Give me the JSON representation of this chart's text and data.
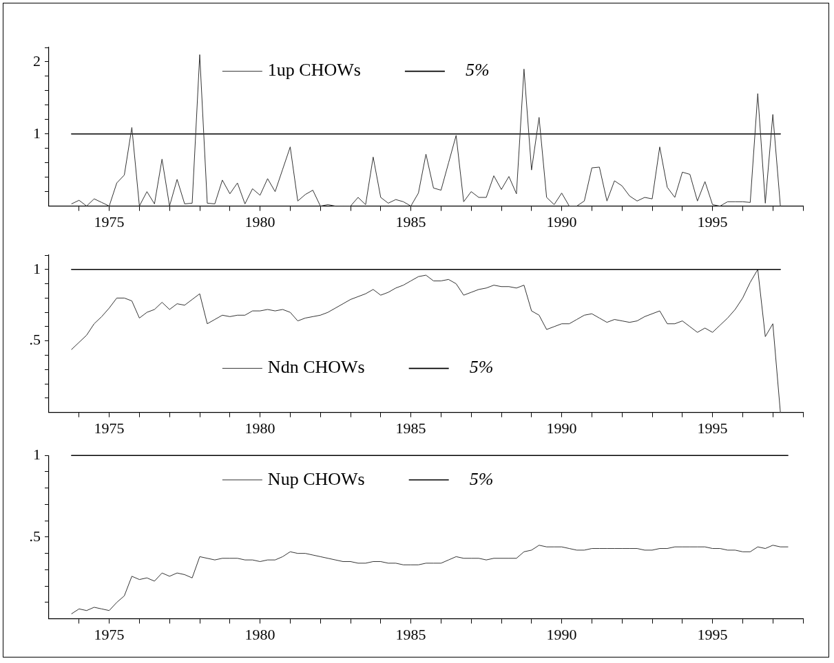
{
  "chart_data": [
    {
      "type": "line",
      "legend": "top",
      "x": [
        1973.75,
        1974,
        1974.25,
        1974.5,
        1974.75,
        1975,
        1975.25,
        1975.5,
        1975.75,
        1976,
        1976.25,
        1976.5,
        1976.75,
        1977,
        1977.25,
        1977.5,
        1977.75,
        1978,
        1978.25,
        1978.5,
        1978.75,
        1979,
        1979.25,
        1979.5,
        1979.75,
        1980,
        1980.25,
        1980.5,
        1980.75,
        1981,
        1981.25,
        1981.5,
        1981.75,
        1982,
        1982.25,
        1982.5,
        1982.75,
        1983,
        1983.25,
        1983.5,
        1983.75,
        1984,
        1984.25,
        1984.5,
        1984.75,
        1985,
        1985.25,
        1985.5,
        1985.75,
        1986,
        1986.25,
        1986.5,
        1986.75,
        1987,
        1987.25,
        1987.5,
        1987.75,
        1988,
        1988.25,
        1988.5,
        1988.75,
        1989,
        1989.25,
        1989.5,
        1989.75,
        1990,
        1990.25,
        1990.5,
        1990.75,
        1991,
        1991.25,
        1991.5,
        1991.75,
        1992,
        1992.25,
        1992.5,
        1992.75,
        1993,
        1993.25,
        1993.5,
        1993.75,
        1994,
        1994.25,
        1994.5,
        1994.75,
        1995,
        1995.25,
        1995.5,
        1995.75,
        1996,
        1996.25,
        1996.5,
        1996.75,
        1997,
        1997.25
      ],
      "series": [
        {
          "name": "1up CHOWs",
          "color": "#333333",
          "values": [
            0.03,
            0.08,
            0,
            0.1,
            0.05,
            0,
            0.32,
            0.43,
            1.09,
            0,
            0.2,
            0.03,
            0.65,
            0,
            0.37,
            0.03,
            0.04,
            2.1,
            0.04,
            0.03,
            0.36,
            0.17,
            0.32,
            0.03,
            0.24,
            0.15,
            0.38,
            0.2,
            0.51,
            0.82,
            0.07,
            0.16,
            0.22,
            0,
            0.02,
            0,
            0,
            0,
            0.12,
            0.02,
            0.68,
            0.12,
            0.04,
            0.09,
            0.06,
            0,
            0.18,
            0.72,
            0.25,
            0.22,
            0.6,
            0.98,
            0.06,
            0.2,
            0.12,
            0.12,
            0.42,
            0.23,
            0.41,
            0.17,
            1.9,
            0.5,
            1.23,
            0.12,
            0.02,
            0.18,
            0,
            0,
            0.07,
            0.53,
            0.54,
            0.07,
            0.35,
            0.28,
            0.14,
            0.07,
            0.12,
            0.1,
            0.82,
            0.26,
            0.12,
            0.47,
            0.44,
            0.07,
            0.34,
            0.02,
            0,
            0.06,
            0.06,
            0.06,
            0.05,
            1.56,
            0.04,
            1.27,
            0
          ]
        },
        {
          "name": "5%",
          "color": "#000000",
          "values": [
            1,
            1,
            1,
            1,
            1,
            1,
            1,
            1,
            1,
            1,
            1,
            1,
            1,
            1,
            1,
            1,
            1,
            1,
            1,
            1,
            1,
            1,
            1,
            1,
            1,
            1,
            1,
            1,
            1,
            1,
            1,
            1,
            1,
            1,
            1,
            1,
            1,
            1,
            1,
            1,
            1,
            1,
            1,
            1,
            1,
            1,
            1,
            1,
            1,
            1,
            1,
            1,
            1,
            1,
            1,
            1,
            1,
            1,
            1,
            1,
            1,
            1,
            1,
            1,
            1,
            1,
            1,
            1,
            1,
            1,
            1,
            1,
            1,
            1,
            1,
            1,
            1,
            1,
            1,
            1,
            1,
            1,
            1,
            1,
            1,
            1,
            1,
            1,
            1,
            1,
            1,
            1,
            1,
            1,
            1
          ]
        }
      ],
      "xlim": [
        1973,
        1998
      ],
      "xticks": [
        {
          "value": 1974,
          "label": null
        },
        1975,
        {
          "value": 1976,
          "label": null
        },
        {
          "value": 1977,
          "label": null
        },
        {
          "value": 1978,
          "label": null
        },
        {
          "value": 1979,
          "label": null
        },
        1980,
        {
          "value": 1981,
          "label": null
        },
        {
          "value": 1982,
          "label": null
        },
        {
          "value": 1983,
          "label": null
        },
        {
          "value": 1984,
          "label": null
        },
        1985,
        {
          "value": 1986,
          "label": null
        },
        {
          "value": 1987,
          "label": null
        },
        {
          "value": 1988,
          "label": null
        },
        {
          "value": 1989,
          "label": null
        },
        1990,
        {
          "value": 1991,
          "label": null
        },
        {
          "value": 1992,
          "label": null
        },
        {
          "value": 1993,
          "label": null
        },
        {
          "value": 1994,
          "label": null
        },
        1995,
        {
          "value": 1996,
          "label": null
        },
        {
          "value": 1997,
          "label": null
        },
        {
          "value": 1998,
          "label": null
        }
      ],
      "ylim": [
        0,
        2.2
      ],
      "yticks": [
        {
          "value": 0.2,
          "label": null
        },
        {
          "value": 0.4,
          "label": null
        },
        {
          "value": 0.6,
          "label": null
        },
        {
          "value": 0.8,
          "label": null
        },
        {
          "value": 1,
          "label": "1"
        },
        {
          "value": 1.2,
          "label": null
        },
        {
          "value": 1.4,
          "label": null
        },
        {
          "value": 1.6,
          "label": null
        },
        {
          "value": 1.8,
          "label": null
        },
        {
          "value": 2,
          "label": "2"
        },
        {
          "value": 2.2,
          "label": null
        }
      ]
    },
    {
      "type": "line",
      "legend": "bottom",
      "x": [
        1973.75,
        1974,
        1974.25,
        1974.5,
        1974.75,
        1975,
        1975.25,
        1975.5,
        1975.75,
        1976,
        1976.25,
        1976.5,
        1976.75,
        1977,
        1977.25,
        1977.5,
        1977.75,
        1978,
        1978.25,
        1978.5,
        1978.75,
        1979,
        1979.25,
        1979.5,
        1979.75,
        1980,
        1980.25,
        1980.5,
        1980.75,
        1981,
        1981.25,
        1981.5,
        1981.75,
        1982,
        1982.25,
        1982.5,
        1982.75,
        1983,
        1983.25,
        1983.5,
        1983.75,
        1984,
        1984.25,
        1984.5,
        1984.75,
        1985,
        1985.25,
        1985.5,
        1985.75,
        1986,
        1986.25,
        1986.5,
        1986.75,
        1987,
        1987.25,
        1987.5,
        1987.75,
        1988,
        1988.25,
        1988.5,
        1988.75,
        1989,
        1989.25,
        1989.5,
        1989.75,
        1990,
        1990.25,
        1990.5,
        1990.75,
        1991,
        1991.25,
        1991.5,
        1991.75,
        1992,
        1992.25,
        1992.5,
        1992.75,
        1993,
        1993.25,
        1993.5,
        1993.75,
        1994,
        1994.25,
        1994.5,
        1994.75,
        1995,
        1995.25,
        1995.5,
        1995.75,
        1996,
        1996.25,
        1996.5,
        1996.75,
        1997,
        1997.25
      ],
      "series": [
        {
          "name": "Ndn CHOWs",
          "color": "#333333",
          "values": [
            0.44,
            0.49,
            0.54,
            0.62,
            0.67,
            0.73,
            0.8,
            0.8,
            0.78,
            0.66,
            0.7,
            0.72,
            0.77,
            0.72,
            0.76,
            0.75,
            0.79,
            0.83,
            0.62,
            0.65,
            0.68,
            0.67,
            0.68,
            0.68,
            0.71,
            0.71,
            0.72,
            0.71,
            0.72,
            0.7,
            0.64,
            0.66,
            0.67,
            0.68,
            0.7,
            0.73,
            0.76,
            0.79,
            0.81,
            0.83,
            0.86,
            0.82,
            0.84,
            0.87,
            0.89,
            0.92,
            0.95,
            0.96,
            0.92,
            0.92,
            0.93,
            0.9,
            0.82,
            0.84,
            0.86,
            0.87,
            0.89,
            0.88,
            0.88,
            0.87,
            0.89,
            0.71,
            0.68,
            0.58,
            0.6,
            0.62,
            0.62,
            0.65,
            0.68,
            0.69,
            0.66,
            0.63,
            0.65,
            0.64,
            0.63,
            0.64,
            0.67,
            0.69,
            0.71,
            0.62,
            0.62,
            0.64,
            0.6,
            0.56,
            0.59,
            0.56,
            0.61,
            0.66,
            0.72,
            0.8,
            0.91,
            1,
            0.53,
            0.62,
            0
          ]
        },
        {
          "name": "5%",
          "color": "#000000",
          "values": [
            1,
            1,
            1,
            1,
            1,
            1,
            1,
            1,
            1,
            1,
            1,
            1,
            1,
            1,
            1,
            1,
            1,
            1,
            1,
            1,
            1,
            1,
            1,
            1,
            1,
            1,
            1,
            1,
            1,
            1,
            1,
            1,
            1,
            1,
            1,
            1,
            1,
            1,
            1,
            1,
            1,
            1,
            1,
            1,
            1,
            1,
            1,
            1,
            1,
            1,
            1,
            1,
            1,
            1,
            1,
            1,
            1,
            1,
            1,
            1,
            1,
            1,
            1,
            1,
            1,
            1,
            1,
            1,
            1,
            1,
            1,
            1,
            1,
            1,
            1,
            1,
            1,
            1,
            1,
            1,
            1,
            1,
            1,
            1,
            1,
            1,
            1,
            1,
            1,
            1,
            1,
            1,
            1,
            1,
            1
          ]
        }
      ],
      "xlim": [
        1973,
        1998
      ],
      "xticks": [
        {
          "value": 1974,
          "label": null
        },
        1975,
        {
          "value": 1976,
          "label": null
        },
        {
          "value": 1977,
          "label": null
        },
        {
          "value": 1978,
          "label": null
        },
        {
          "value": 1979,
          "label": null
        },
        1980,
        {
          "value": 1981,
          "label": null
        },
        {
          "value": 1982,
          "label": null
        },
        {
          "value": 1983,
          "label": null
        },
        {
          "value": 1984,
          "label": null
        },
        1985,
        {
          "value": 1986,
          "label": null
        },
        {
          "value": 1987,
          "label": null
        },
        {
          "value": 1988,
          "label": null
        },
        {
          "value": 1989,
          "label": null
        },
        1990,
        {
          "value": 1991,
          "label": null
        },
        {
          "value": 1992,
          "label": null
        },
        {
          "value": 1993,
          "label": null
        },
        {
          "value": 1994,
          "label": null
        },
        1995,
        {
          "value": 1996,
          "label": null
        },
        {
          "value": 1997,
          "label": null
        },
        {
          "value": 1998,
          "label": null
        }
      ],
      "ylim": [
        0,
        1.1
      ],
      "yticks": [
        {
          "value": 0.1,
          "label": null
        },
        {
          "value": 0.2,
          "label": null
        },
        {
          "value": 0.3,
          "label": null
        },
        {
          "value": 0.4,
          "label": null
        },
        {
          "value": 0.5,
          "label": ".5"
        },
        {
          "value": 0.6,
          "label": null
        },
        {
          "value": 0.7,
          "label": null
        },
        {
          "value": 0.8,
          "label": null
        },
        {
          "value": 0.9,
          "label": null
        },
        1,
        {
          "value": 1.1,
          "label": null
        }
      ]
    },
    {
      "type": "line",
      "legend": "top",
      "x": [
        1973.75,
        1974,
        1974.25,
        1974.5,
        1974.75,
        1975,
        1975.25,
        1975.5,
        1975.75,
        1976,
        1976.25,
        1976.5,
        1976.75,
        1977,
        1977.25,
        1977.5,
        1977.75,
        1978,
        1978.25,
        1978.5,
        1978.75,
        1979,
        1979.25,
        1979.5,
        1979.75,
        1980,
        1980.25,
        1980.5,
        1980.75,
        1981,
        1981.25,
        1981.5,
        1981.75,
        1982,
        1982.25,
        1982.5,
        1982.75,
        1983,
        1983.25,
        1983.5,
        1983.75,
        1984,
        1984.25,
        1984.5,
        1984.75,
        1985,
        1985.25,
        1985.5,
        1985.75,
        1986,
        1986.25,
        1986.5,
        1986.75,
        1987,
        1987.25,
        1987.5,
        1987.75,
        1988,
        1988.25,
        1988.5,
        1988.75,
        1989,
        1989.25,
        1989.5,
        1989.75,
        1990,
        1990.25,
        1990.5,
        1990.75,
        1991,
        1991.25,
        1991.5,
        1991.75,
        1992,
        1992.25,
        1992.5,
        1992.75,
        1993,
        1993.25,
        1993.5,
        1993.75,
        1994,
        1994.25,
        1994.5,
        1994.75,
        1995,
        1995.25,
        1995.5,
        1995.75,
        1996,
        1996.25,
        1996.5,
        1996.75,
        1997,
        1997.25,
        1997.5
      ],
      "series": [
        {
          "name": "Nup CHOWs",
          "color": "#333333",
          "values": [
            0.03,
            0.06,
            0.05,
            0.07,
            0.06,
            0.05,
            0.1,
            0.14,
            0.26,
            0.24,
            0.25,
            0.23,
            0.28,
            0.26,
            0.28,
            0.27,
            0.25,
            0.38,
            0.37,
            0.36,
            0.37,
            0.37,
            0.37,
            0.36,
            0.36,
            0.35,
            0.36,
            0.36,
            0.38,
            0.41,
            0.4,
            0.4,
            0.39,
            0.38,
            0.37,
            0.36,
            0.35,
            0.35,
            0.34,
            0.34,
            0.35,
            0.35,
            0.34,
            0.34,
            0.33,
            0.33,
            0.33,
            0.34,
            0.34,
            0.34,
            0.36,
            0.38,
            0.37,
            0.37,
            0.37,
            0.36,
            0.37,
            0.37,
            0.37,
            0.37,
            0.41,
            0.42,
            0.45,
            0.44,
            0.44,
            0.44,
            0.43,
            0.42,
            0.42,
            0.43,
            0.43,
            0.43,
            0.43,
            0.43,
            0.43,
            0.43,
            0.42,
            0.42,
            0.43,
            0.43,
            0.44,
            0.44,
            0.44,
            0.44,
            0.44,
            0.43,
            0.43,
            0.42,
            0.42,
            0.41,
            0.41,
            0.44,
            0.43,
            0.45,
            0.44,
            0.44
          ]
        },
        {
          "name": "5%",
          "color": "#000000",
          "values": [
            1,
            1,
            1,
            1,
            1,
            1,
            1,
            1,
            1,
            1,
            1,
            1,
            1,
            1,
            1,
            1,
            1,
            1,
            1,
            1,
            1,
            1,
            1,
            1,
            1,
            1,
            1,
            1,
            1,
            1,
            1,
            1,
            1,
            1,
            1,
            1,
            1,
            1,
            1,
            1,
            1,
            1,
            1,
            1,
            1,
            1,
            1,
            1,
            1,
            1,
            1,
            1,
            1,
            1,
            1,
            1,
            1,
            1,
            1,
            1,
            1,
            1,
            1,
            1,
            1,
            1,
            1,
            1,
            1,
            1,
            1,
            1,
            1,
            1,
            1,
            1,
            1,
            1,
            1,
            1,
            1,
            1,
            1,
            1,
            1,
            1,
            1,
            1,
            1,
            1,
            1,
            1,
            1,
            1,
            1,
            1
          ]
        }
      ],
      "xlim": [
        1973,
        1998
      ],
      "xticks": [
        {
          "value": 1974,
          "label": null
        },
        1975,
        {
          "value": 1976,
          "label": null
        },
        {
          "value": 1977,
          "label": null
        },
        {
          "value": 1978,
          "label": null
        },
        {
          "value": 1979,
          "label": null
        },
        1980,
        {
          "value": 1981,
          "label": null
        },
        {
          "value": 1982,
          "label": null
        },
        {
          "value": 1983,
          "label": null
        },
        {
          "value": 1984,
          "label": null
        },
        1985,
        {
          "value": 1986,
          "label": null
        },
        {
          "value": 1987,
          "label": null
        },
        {
          "value": 1988,
          "label": null
        },
        {
          "value": 1989,
          "label": null
        },
        1990,
        {
          "value": 1991,
          "label": null
        },
        {
          "value": 1992,
          "label": null
        },
        {
          "value": 1993,
          "label": null
        },
        {
          "value": 1994,
          "label": null
        },
        1995,
        {
          "value": 1996,
          "label": null
        },
        {
          "value": 1997,
          "label": null
        },
        {
          "value": 1998,
          "label": null
        }
      ],
      "ylim": [
        0,
        1
      ],
      "yticks": [
        {
          "value": 0.1,
          "label": null
        },
        {
          "value": 0.2,
          "label": null
        },
        {
          "value": 0.3,
          "label": null
        },
        {
          "value": 0.4,
          "label": null
        },
        {
          "value": 0.5,
          "label": ".5"
        },
        {
          "value": 0.6,
          "label": null
        },
        {
          "value": 0.7,
          "label": null
        },
        {
          "value": 0.8,
          "label": null
        },
        {
          "value": 0.9,
          "label": null
        },
        1
      ]
    }
  ]
}
